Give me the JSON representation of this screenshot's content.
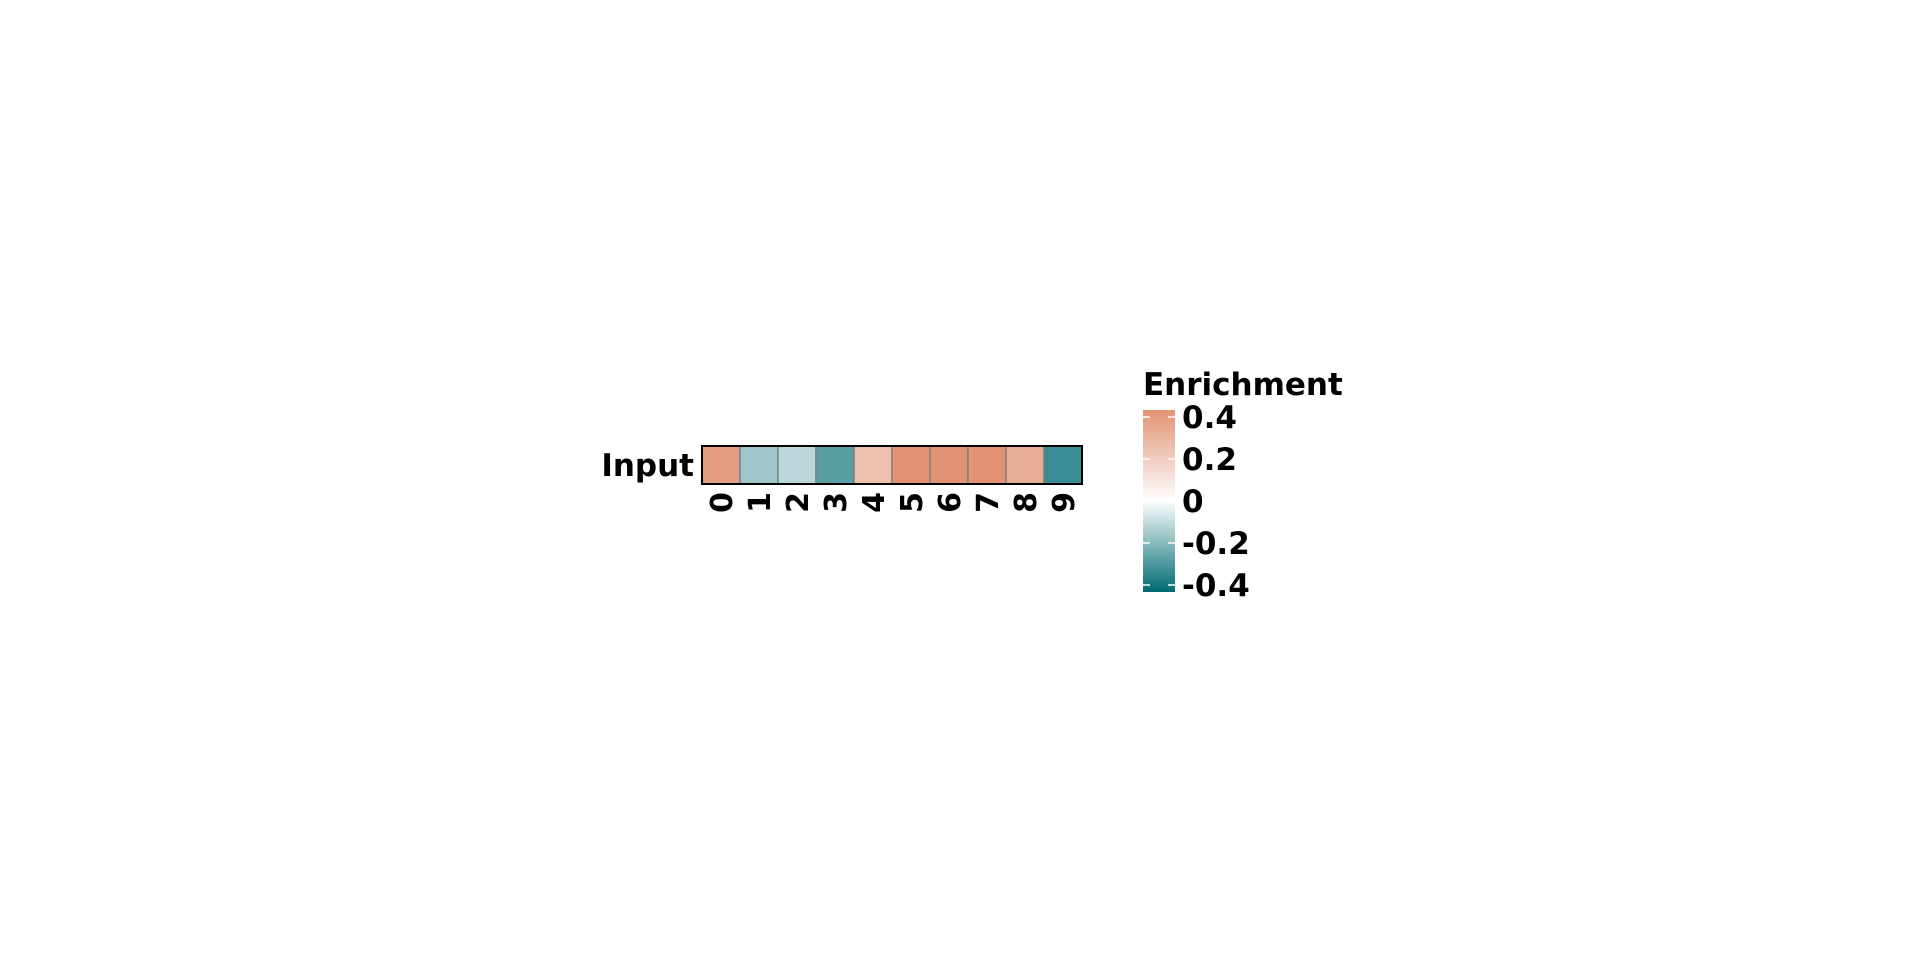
{
  "chart_data": {
    "type": "heatmap",
    "title": "",
    "rows": [
      "Input"
    ],
    "columns": [
      "0",
      "1",
      "2",
      "3",
      "4",
      "5",
      "6",
      "7",
      "8",
      "9"
    ],
    "values": [
      [
        0.36,
        -0.15,
        -0.11,
        -0.26,
        0.23,
        0.42,
        0.42,
        0.42,
        0.3,
        -0.31
      ]
    ],
    "legend": {
      "title": "Enrichment",
      "placement": "right",
      "min": -0.4,
      "max": 0.4,
      "ticks": [
        0.4,
        0.2,
        0,
        -0.2,
        -0.4
      ],
      "tick_labels": [
        "0.4",
        "0.2",
        "0",
        "-0.2",
        "-0.4"
      ]
    },
    "colors": {
      "low": "#006a74",
      "mid": "#ffffff",
      "high": "#e19374",
      "cell_border": "#808080",
      "frame": "#000000"
    }
  }
}
